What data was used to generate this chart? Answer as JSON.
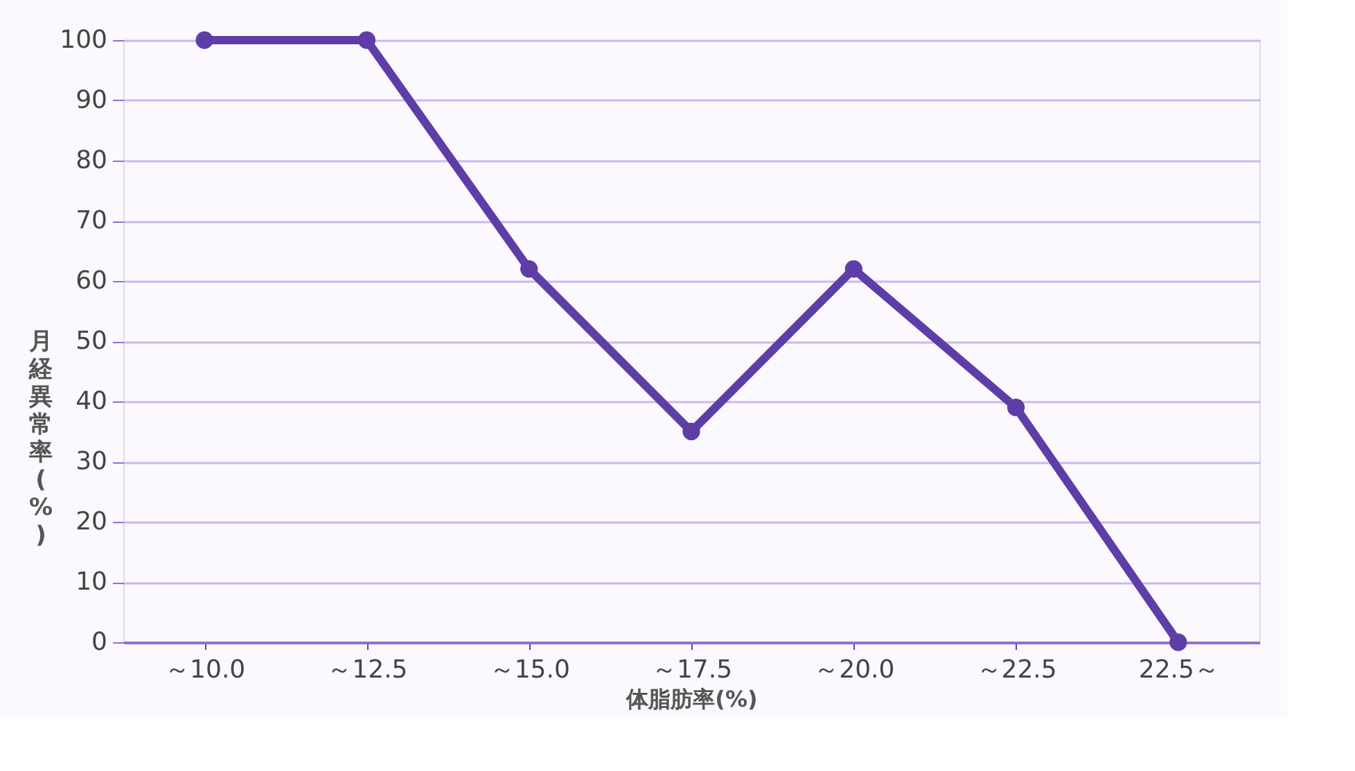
{
  "chart_data": {
    "type": "line",
    "categories": [
      "～10.0",
      "～12.5",
      "～15.0",
      "～17.5",
      "～20.0",
      "～22.5",
      "22.5～"
    ],
    "values": [
      100,
      100,
      62,
      35,
      62,
      39,
      0
    ],
    "color": "#5e3ea6",
    "xlabel": "体脂肪率(%)",
    "ylabel": "月経異常率(%)",
    "ylim": [
      0,
      100
    ],
    "yticks": [
      0,
      10,
      20,
      30,
      40,
      50,
      60,
      70,
      80,
      90,
      100
    ],
    "grid": "y",
    "marker": "circle",
    "line_style": "solid"
  }
}
